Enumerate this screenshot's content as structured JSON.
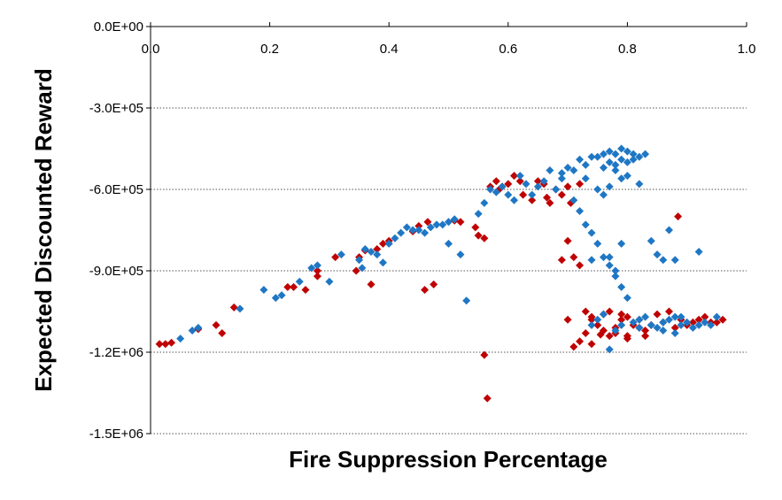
{
  "chart_data": {
    "type": "scatter",
    "title": "",
    "xlabel": "Fire Suppression Percentage",
    "ylabel": "Expected Discounted Reward",
    "xlim": [
      0,
      1
    ],
    "ylim": [
      -1500000,
      0
    ],
    "x_ticks": [
      {
        "value": 0,
        "label": "0.0"
      },
      {
        "value": 0.2,
        "label": "0.2"
      },
      {
        "value": 0.4,
        "label": "0.4"
      },
      {
        "value": 0.6,
        "label": "0.6"
      },
      {
        "value": 0.8,
        "label": "0.8"
      },
      {
        "value": 1.0,
        "label": "1.0"
      }
    ],
    "y_ticks": [
      {
        "value": 0,
        "label": "0.0E+00"
      },
      {
        "value": -300000,
        "label": "-3.0E+05"
      },
      {
        "value": -600000,
        "label": "-6.0E+05"
      },
      {
        "value": -900000,
        "label": "-9.0E+05"
      },
      {
        "value": -1200000,
        "label": "-1.2E+06"
      },
      {
        "value": -1500000,
        "label": "-1.5E+06"
      }
    ],
    "gridlines": "horizontal dotted",
    "x_axis_position": "top",
    "legend": "none",
    "marker": "diamond",
    "series": [
      {
        "color": "#c00000",
        "points": [
          [
            0.015,
            -1170000
          ],
          [
            0.025,
            -1170000
          ],
          [
            0.035,
            -1165000
          ],
          [
            0.08,
            -1115000
          ],
          [
            0.11,
            -1100000
          ],
          [
            0.12,
            -1130000
          ],
          [
            0.14,
            -1035000
          ],
          [
            0.23,
            -960000
          ],
          [
            0.24,
            -960000
          ],
          [
            0.26,
            -970000
          ],
          [
            0.28,
            -920000
          ],
          [
            0.28,
            -900000
          ],
          [
            0.31,
            -850000
          ],
          [
            0.345,
            -900000
          ],
          [
            0.35,
            -850000
          ],
          [
            0.36,
            -825000
          ],
          [
            0.37,
            -950000
          ],
          [
            0.38,
            -820000
          ],
          [
            0.39,
            -800000
          ],
          [
            0.4,
            -790000
          ],
          [
            0.44,
            -755000
          ],
          [
            0.45,
            -735000
          ],
          [
            0.46,
            -970000
          ],
          [
            0.465,
            -720000
          ],
          [
            0.475,
            -950000
          ],
          [
            0.51,
            -715000
          ],
          [
            0.52,
            -720000
          ],
          [
            0.545,
            -740000
          ],
          [
            0.55,
            -770000
          ],
          [
            0.56,
            -780000
          ],
          [
            0.56,
            -1210000
          ],
          [
            0.565,
            -1370000
          ],
          [
            0.57,
            -590000
          ],
          [
            0.58,
            -570000
          ],
          [
            0.585,
            -600000
          ],
          [
            0.59,
            -590000
          ],
          [
            0.6,
            -580000
          ],
          [
            0.61,
            -550000
          ],
          [
            0.62,
            -570000
          ],
          [
            0.625,
            -620000
          ],
          [
            0.64,
            -640000
          ],
          [
            0.65,
            -570000
          ],
          [
            0.66,
            -580000
          ],
          [
            0.665,
            -630000
          ],
          [
            0.67,
            -650000
          ],
          [
            0.68,
            -600000
          ],
          [
            0.69,
            -620000
          ],
          [
            0.69,
            -860000
          ],
          [
            0.7,
            -590000
          ],
          [
            0.7,
            -790000
          ],
          [
            0.705,
            -650000
          ],
          [
            0.71,
            -850000
          ],
          [
            0.72,
            -880000
          ],
          [
            0.72,
            -580000
          ],
          [
            0.73,
            -1050000
          ],
          [
            0.74,
            -1080000
          ],
          [
            0.74,
            -1070000
          ],
          [
            0.75,
            -1100000
          ],
          [
            0.76,
            -1120000
          ],
          [
            0.77,
            -1140000
          ],
          [
            0.78,
            -1110000
          ],
          [
            0.78,
            -1130000
          ],
          [
            0.79,
            -1080000
          ],
          [
            0.8,
            -1140000
          ],
          [
            0.8,
            -1150000
          ],
          [
            0.81,
            -1100000
          ],
          [
            0.82,
            -1080000
          ],
          [
            0.83,
            -1120000
          ],
          [
            0.84,
            -1100000
          ],
          [
            0.85,
            -1060000
          ],
          [
            0.86,
            -1090000
          ],
          [
            0.87,
            -1050000
          ],
          [
            0.88,
            -1110000
          ],
          [
            0.89,
            -1080000
          ],
          [
            0.885,
            -700000
          ],
          [
            0.9,
            -1100000
          ],
          [
            0.91,
            -1090000
          ],
          [
            0.92,
            -1080000
          ],
          [
            0.93,
            -1070000
          ],
          [
            0.94,
            -1090000
          ],
          [
            0.95,
            -1090000
          ],
          [
            0.96,
            -1080000
          ],
          [
            0.71,
            -1180000
          ],
          [
            0.72,
            -1160000
          ],
          [
            0.73,
            -1130000
          ],
          [
            0.76,
            -1060000
          ],
          [
            0.77,
            -1050000
          ],
          [
            0.79,
            -1060000
          ],
          [
            0.8,
            -1070000
          ],
          [
            0.82,
            -1110000
          ],
          [
            0.83,
            -1140000
          ],
          [
            0.7,
            -1080000
          ],
          [
            0.74,
            -1170000
          ],
          [
            0.755,
            -1135000
          ]
        ]
      },
      {
        "color": "#1f77c4",
        "points": [
          [
            0.05,
            -1150000
          ],
          [
            0.07,
            -1120000
          ],
          [
            0.08,
            -1110000
          ],
          [
            0.15,
            -1040000
          ],
          [
            0.19,
            -970000
          ],
          [
            0.21,
            -1000000
          ],
          [
            0.22,
            -990000
          ],
          [
            0.25,
            -940000
          ],
          [
            0.27,
            -890000
          ],
          [
            0.28,
            -880000
          ],
          [
            0.3,
            -940000
          ],
          [
            0.32,
            -840000
          ],
          [
            0.35,
            -860000
          ],
          [
            0.355,
            -890000
          ],
          [
            0.36,
            -820000
          ],
          [
            0.37,
            -830000
          ],
          [
            0.38,
            -840000
          ],
          [
            0.39,
            -870000
          ],
          [
            0.4,
            -800000
          ],
          [
            0.41,
            -780000
          ],
          [
            0.42,
            -760000
          ],
          [
            0.43,
            -740000
          ],
          [
            0.44,
            -750000
          ],
          [
            0.45,
            -750000
          ],
          [
            0.46,
            -760000
          ],
          [
            0.47,
            -740000
          ],
          [
            0.48,
            -730000
          ],
          [
            0.49,
            -730000
          ],
          [
            0.5,
            -800000
          ],
          [
            0.5,
            -720000
          ],
          [
            0.51,
            -710000
          ],
          [
            0.52,
            -840000
          ],
          [
            0.53,
            -1010000
          ],
          [
            0.55,
            -690000
          ],
          [
            0.56,
            -650000
          ],
          [
            0.57,
            -600000
          ],
          [
            0.58,
            -610000
          ],
          [
            0.59,
            -590000
          ],
          [
            0.6,
            -620000
          ],
          [
            0.61,
            -640000
          ],
          [
            0.62,
            -550000
          ],
          [
            0.63,
            -580000
          ],
          [
            0.64,
            -620000
          ],
          [
            0.65,
            -590000
          ],
          [
            0.66,
            -570000
          ],
          [
            0.67,
            -530000
          ],
          [
            0.68,
            -600000
          ],
          [
            0.69,
            -560000
          ],
          [
            0.7,
            -520000
          ],
          [
            0.71,
            -530000
          ],
          [
            0.72,
            -490000
          ],
          [
            0.73,
            -510000
          ],
          [
            0.74,
            -480000
          ],
          [
            0.75,
            -480000
          ],
          [
            0.76,
            -470000
          ],
          [
            0.77,
            -460000
          ],
          [
            0.78,
            -470000
          ],
          [
            0.79,
            -450000
          ],
          [
            0.8,
            -460000
          ],
          [
            0.81,
            -470000
          ],
          [
            0.82,
            -480000
          ],
          [
            0.83,
            -470000
          ],
          [
            0.76,
            -520000
          ],
          [
            0.77,
            -500000
          ],
          [
            0.78,
            -510000
          ],
          [
            0.79,
            -490000
          ],
          [
            0.8,
            -500000
          ],
          [
            0.81,
            -490000
          ],
          [
            0.78,
            -530000
          ],
          [
            0.79,
            -560000
          ],
          [
            0.8,
            -550000
          ],
          [
            0.82,
            -580000
          ],
          [
            0.69,
            -540000
          ],
          [
            0.73,
            -560000
          ],
          [
            0.75,
            -600000
          ],
          [
            0.76,
            -620000
          ],
          [
            0.77,
            -590000
          ],
          [
            0.71,
            -640000
          ],
          [
            0.72,
            -680000
          ],
          [
            0.73,
            -730000
          ],
          [
            0.74,
            -760000
          ],
          [
            0.75,
            -800000
          ],
          [
            0.76,
            -850000
          ],
          [
            0.77,
            -880000
          ],
          [
            0.78,
            -920000
          ],
          [
            0.79,
            -960000
          ],
          [
            0.8,
            -1000000
          ],
          [
            0.74,
            -1100000
          ],
          [
            0.75,
            -1080000
          ],
          [
            0.76,
            -1060000
          ],
          [
            0.77,
            -1190000
          ],
          [
            0.78,
            -1120000
          ],
          [
            0.79,
            -1100000
          ],
          [
            0.81,
            -1090000
          ],
          [
            0.82,
            -1080000
          ],
          [
            0.83,
            -1070000
          ],
          [
            0.84,
            -1100000
          ],
          [
            0.85,
            -1110000
          ],
          [
            0.86,
            -1090000
          ],
          [
            0.87,
            -1080000
          ],
          [
            0.88,
            -1070000
          ],
          [
            0.89,
            -1100000
          ],
          [
            0.9,
            -1090000
          ],
          [
            0.91,
            -1110000
          ],
          [
            0.92,
            -1100000
          ],
          [
            0.93,
            -1090000
          ],
          [
            0.94,
            -1100000
          ],
          [
            0.95,
            -1070000
          ],
          [
            0.84,
            -790000
          ],
          [
            0.85,
            -840000
          ],
          [
            0.86,
            -860000
          ],
          [
            0.87,
            -750000
          ],
          [
            0.88,
            -860000
          ],
          [
            0.92,
            -830000
          ],
          [
            0.79,
            -800000
          ],
          [
            0.77,
            -850000
          ],
          [
            0.74,
            -860000
          ],
          [
            0.78,
            -900000
          ],
          [
            0.82,
            -1110000
          ],
          [
            0.86,
            -1120000
          ],
          [
            0.88,
            -1130000
          ],
          [
            0.89,
            -1070000
          ]
        ]
      }
    ]
  }
}
